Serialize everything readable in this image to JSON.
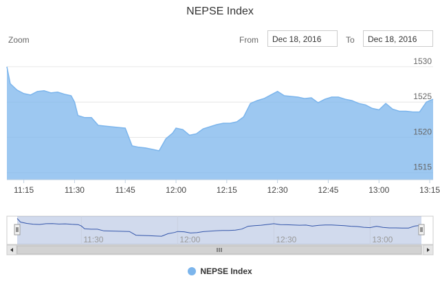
{
  "header": {
    "zoom_label": "Zoom",
    "from_label": "From",
    "from_value": "Dec 18, 2016",
    "to_label": "To",
    "to_value": "Dec 18, 2016"
  },
  "chart_data": {
    "type": "area",
    "title": "NEPSE Index",
    "xlabel": "",
    "ylabel": "",
    "x_ticks": [
      "11:15",
      "11:30",
      "11:45",
      "12:00",
      "12:15",
      "12:30",
      "12:45",
      "13:00",
      "13:15"
    ],
    "y_ticks": [
      1515,
      1520,
      1525,
      1530
    ],
    "xlim": [
      "11:10",
      "13:16"
    ],
    "ylim": [
      1514,
      1529.7
    ],
    "grid": true,
    "legend_position": "bottom-center",
    "navigator_ticks": [
      "11:30",
      "12:00",
      "12:30",
      "13:00"
    ],
    "series": [
      {
        "name": "NEPSE Index",
        "color": "#7cb5ec",
        "x": [
          "11:10",
          "11:11",
          "11:13",
          "11:15",
          "11:17",
          "11:19",
          "11:21",
          "11:23",
          "11:25",
          "11:27",
          "11:29",
          "11:30",
          "11:31",
          "11:33",
          "11:35",
          "11:37",
          "11:39",
          "11:41",
          "11:43",
          "11:45",
          "11:47",
          "11:49",
          "11:51",
          "11:53",
          "11:55",
          "11:57",
          "11:59",
          "12:00",
          "12:02",
          "12:04",
          "12:06",
          "12:08",
          "12:10",
          "12:12",
          "12:14",
          "12:16",
          "12:18",
          "12:20",
          "12:22",
          "12:24",
          "12:26",
          "12:28",
          "12:30",
          "12:32",
          "12:34",
          "12:36",
          "12:38",
          "12:40",
          "12:42",
          "12:44",
          "12:46",
          "12:48",
          "12:50",
          "12:52",
          "12:54",
          "12:56",
          "12:58",
          "13:00",
          "13:02",
          "13:04",
          "13:06",
          "13:08",
          "13:10",
          "13:12",
          "13:14",
          "13:16"
        ],
        "y": [
          1530.0,
          1527.6,
          1526.7,
          1526.2,
          1526.0,
          1526.5,
          1526.6,
          1526.3,
          1526.4,
          1526.1,
          1525.9,
          1525.0,
          1523.1,
          1522.8,
          1522.8,
          1521.7,
          1521.6,
          1521.5,
          1521.4,
          1521.3,
          1518.8,
          1518.6,
          1518.5,
          1518.3,
          1518.1,
          1519.8,
          1520.6,
          1521.3,
          1521.1,
          1520.3,
          1520.5,
          1521.2,
          1521.5,
          1521.8,
          1522.0,
          1522.0,
          1522.2,
          1522.9,
          1524.8,
          1525.2,
          1525.5,
          1526.0,
          1526.5,
          1525.9,
          1525.8,
          1525.7,
          1525.5,
          1525.6,
          1524.9,
          1525.4,
          1525.7,
          1525.7,
          1525.4,
          1525.2,
          1524.8,
          1524.6,
          1524.1,
          1523.9,
          1524.8,
          1524.0,
          1523.7,
          1523.7,
          1523.6,
          1523.6,
          1525.0,
          1525.4
        ]
      }
    ]
  }
}
